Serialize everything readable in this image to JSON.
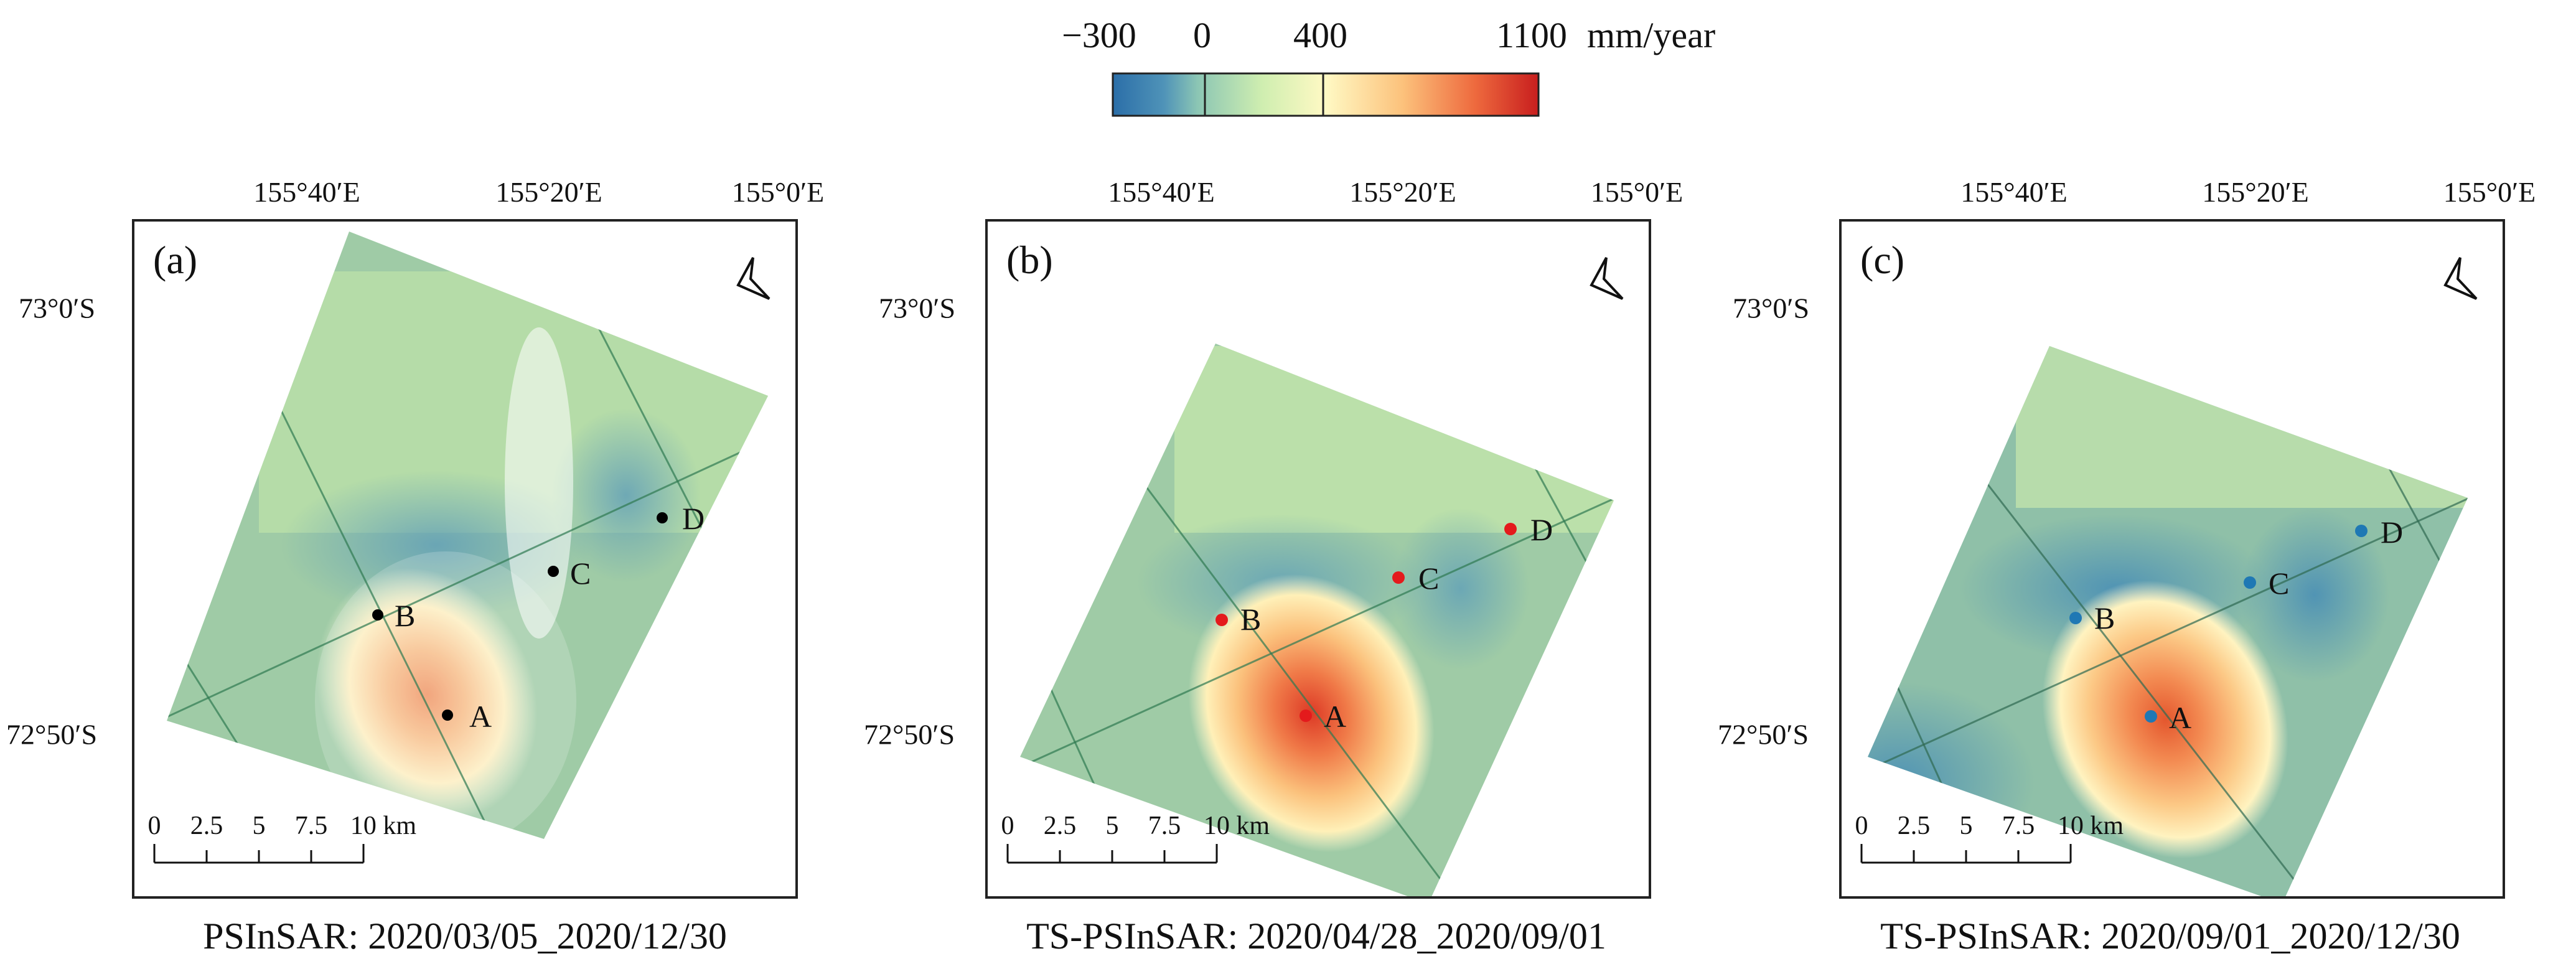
{
  "colorbar": {
    "ticks": [
      "−300",
      "0",
      "400",
      "1100"
    ],
    "tick_values": [
      -300,
      0,
      400,
      1100
    ],
    "unit": "mm/year",
    "colors": [
      "#2b6ea8",
      "#5a9bb8",
      "#a8d8a8",
      "#e6f5b0",
      "#fff7c0",
      "#fcc07a",
      "#f07d45",
      "#d73027",
      "#c01a1a"
    ]
  },
  "panels": [
    {
      "label": "(a)",
      "caption": "PSInSAR: 2020/03/05_2020/12/30",
      "lon_labels": [
        "155°40′E",
        "155°20′E",
        "155°0′E"
      ],
      "lat_labels": [
        "73°0′S",
        "72°50′S"
      ],
      "scale_labels": [
        "0",
        "2.5",
        "5",
        "7.5",
        "10 km"
      ],
      "points": [
        {
          "name": "A",
          "color": "#000000"
        },
        {
          "name": "B",
          "color": "#000000"
        },
        {
          "name": "C",
          "color": "#000000"
        },
        {
          "name": "D",
          "color": "#000000"
        }
      ],
      "north_icon": "north-arrow-icon"
    },
    {
      "label": "(b)",
      "caption": "TS-PSInSAR: 2020/04/28_2020/09/01",
      "lon_labels": [
        "155°40′E",
        "155°20′E",
        "155°0′E"
      ],
      "lat_labels": [
        "73°0′S",
        "72°50′S"
      ],
      "scale_labels": [
        "0",
        "2.5",
        "5",
        "7.5",
        "10 km"
      ],
      "points": [
        {
          "name": "A",
          "color": "#e41a1c"
        },
        {
          "name": "B",
          "color": "#e41a1c"
        },
        {
          "name": "C",
          "color": "#e41a1c"
        },
        {
          "name": "D",
          "color": "#e41a1c"
        }
      ],
      "north_icon": "north-arrow-icon"
    },
    {
      "label": "(c)",
      "caption": "TS-PSInSAR: 2020/09/01_2020/12/30",
      "lon_labels": [
        "155°40′E",
        "155°20′E",
        "155°0′E"
      ],
      "lat_labels": [
        "73°0′S",
        "72°50′S"
      ],
      "scale_labels": [
        "0",
        "2.5",
        "5",
        "7.5",
        "10 km"
      ],
      "points": [
        {
          "name": "A",
          "color": "#1f78b4"
        },
        {
          "name": "B",
          "color": "#1f78b4"
        },
        {
          "name": "C",
          "color": "#1f78b4"
        },
        {
          "name": "D",
          "color": "#1f78b4"
        }
      ],
      "north_icon": "north-arrow-icon"
    }
  ]
}
